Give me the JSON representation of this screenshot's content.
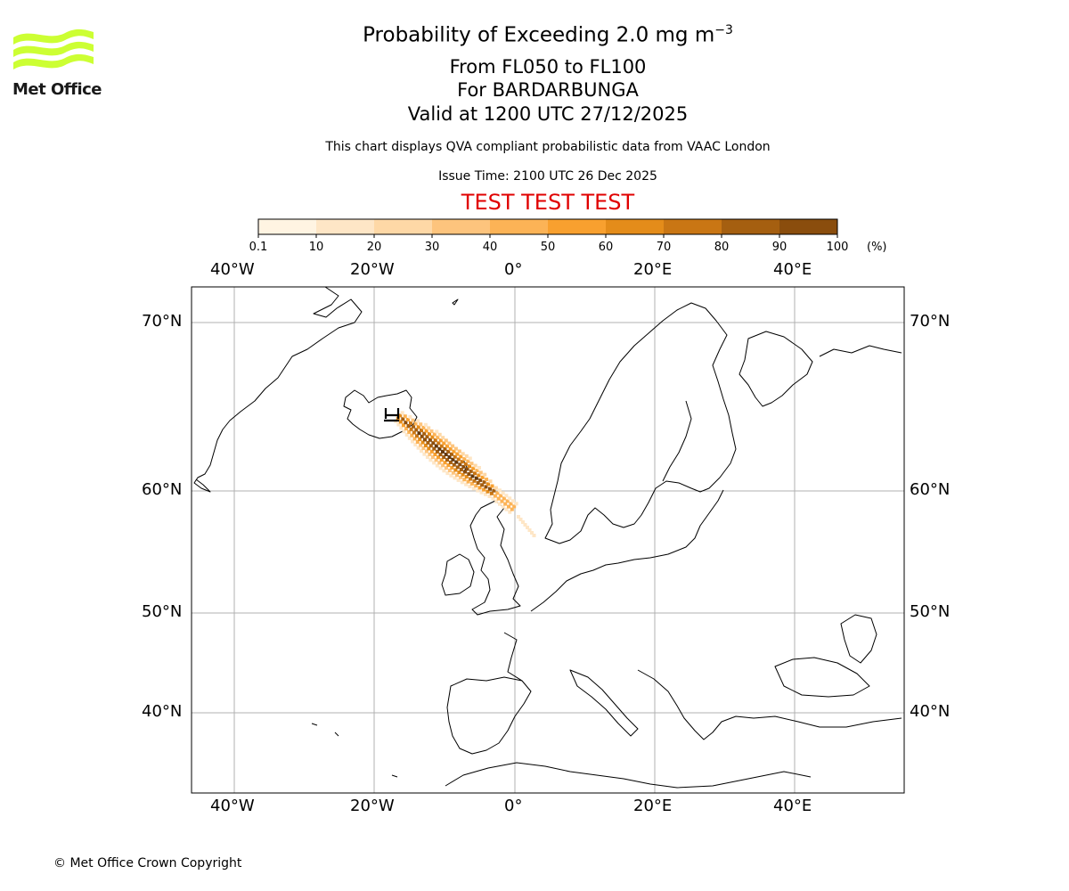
{
  "header": {
    "title_prefix": "Probability of Exceeding 2.0 mg m",
    "title_exponent": "−3",
    "levels": "From FL050 to FL100",
    "volcano": "For BARDARBUNGA",
    "valid": "Valid at 1200 UTC 27/12/2025",
    "description": "This chart displays QVA compliant probabilistic data from VAAC London",
    "issue_time": "Issue Time: 2100 UTC 26 Dec 2025",
    "test_banner": "TEST TEST TEST"
  },
  "logo": {
    "text": "Met Office",
    "color": "#ccff33"
  },
  "colorbar": {
    "ticks": [
      "0.1",
      "10",
      "20",
      "30",
      "40",
      "50",
      "60",
      "70",
      "80",
      "90",
      "100"
    ],
    "unit": "(%)",
    "colors": [
      "#fff4e2",
      "#fee6c6",
      "#fed8a6",
      "#fdc47d",
      "#fcb356",
      "#f8a02f",
      "#e48c1a",
      "#c97614",
      "#a55f10",
      "#8a4d0d",
      "#62380e"
    ]
  },
  "map": {
    "lon_labels": [
      "40°W",
      "20°W",
      "0°",
      "20°E",
      "40°E"
    ],
    "lat_labels": [
      "70°N",
      "60°N",
      "50°N",
      "40°N"
    ],
    "gridline_color": "#b0b0b0",
    "volcano_marker": "volcano-icon"
  },
  "footer": {
    "copyright": "© Met Office Crown Copyright"
  }
}
